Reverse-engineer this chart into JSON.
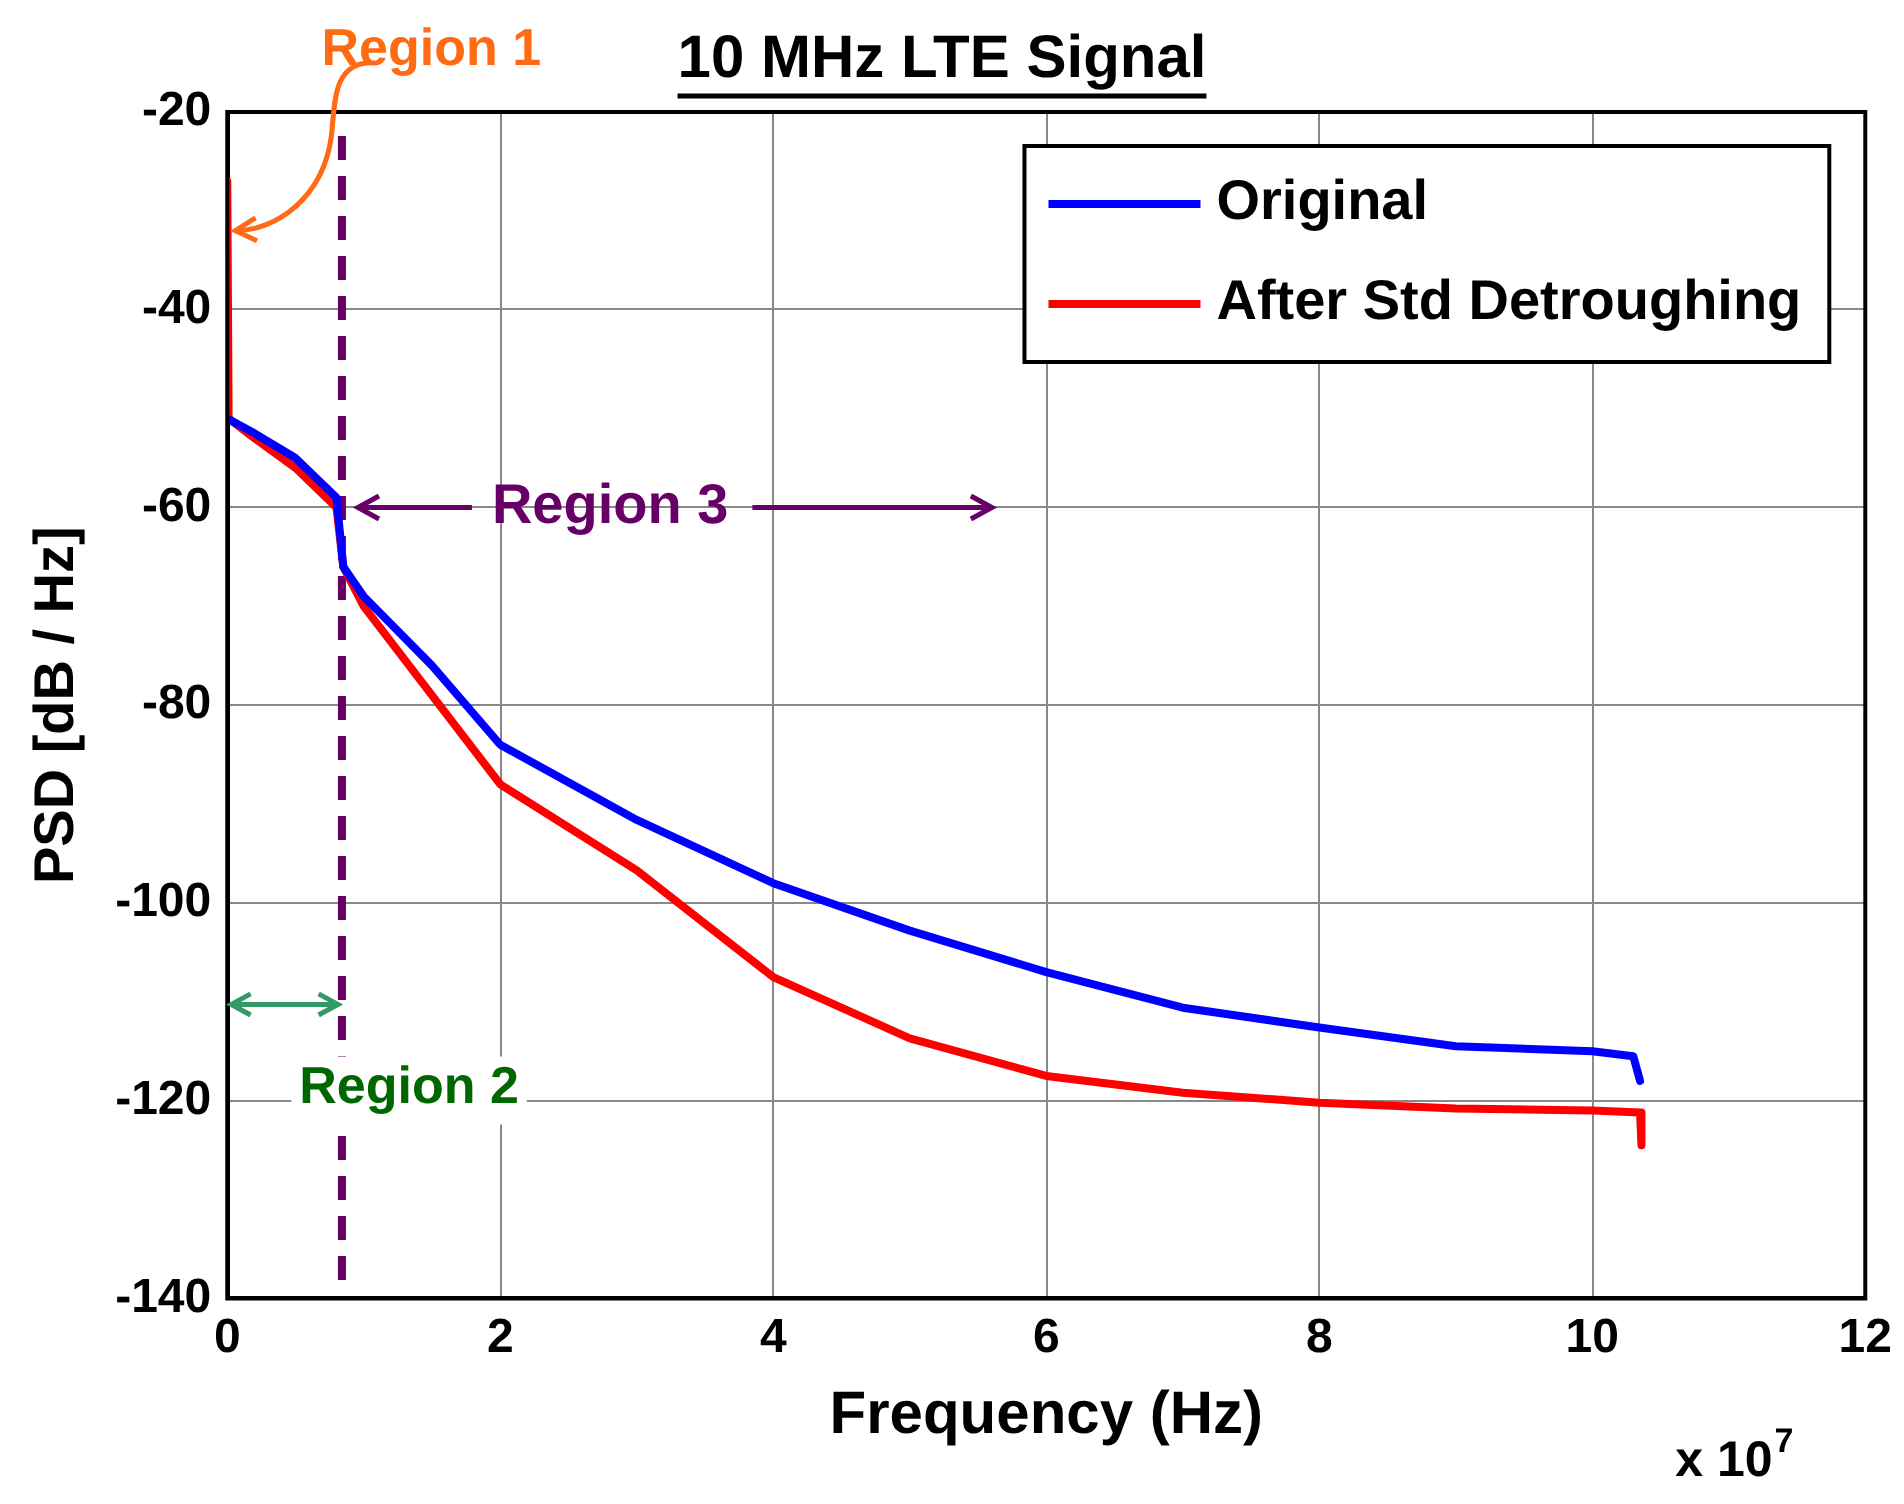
{
  "chart_data": {
    "type": "line",
    "title": "10 MHz LTE Signal",
    "xlabel": "Frequency (Hz)",
    "ylabel": "PSD [dB / Hz]",
    "xlim": [
      0,
      12
    ],
    "xticks": [
      0,
      2,
      4,
      6,
      8,
      10,
      12
    ],
    "ylim": [
      -140,
      -20
    ],
    "yticks": [
      -140,
      -120,
      -100,
      -80,
      -60,
      -40,
      -20
    ],
    "grid": true,
    "legend": "top right",
    "line_style": "solid",
    "marker": "none",
    "series": [
      {
        "name": "Original",
        "color": "#0000ff",
        "x": [
          0,
          0.2,
          0.5,
          0.8,
          0.85,
          1,
          1.5,
          2,
          3,
          4,
          5,
          6,
          7,
          8,
          9,
          10,
          10.3,
          10.35
        ],
        "values": [
          -51,
          -52.5,
          -55,
          -59,
          -66,
          -69,
          -76,
          -84,
          -91.6,
          -98,
          -102.8,
          -107,
          -110.6,
          -112.6,
          -114.5,
          -115,
          -115.5,
          -118
        ]
      },
      {
        "name": "After Std Detroughing",
        "color": "#ff0000",
        "x": [
          0,
          0.01,
          0.2,
          0.5,
          0.8,
          0.85,
          1,
          1.5,
          2,
          3,
          4,
          5,
          6,
          7,
          8,
          9,
          10,
          10.35,
          10.36
        ],
        "values": [
          -27,
          -51,
          -53,
          -56,
          -60,
          -66,
          -70,
          -79,
          -88,
          -96.7,
          -107.5,
          -113.7,
          -117.5,
          -119.2,
          -120.2,
          -120.8,
          -121,
          -121.2,
          -124.5
        ]
      }
    ],
    "ref_lines": [
      {
        "axis": "x",
        "value": 0.84,
        "color": "#660066",
        "line_style": "dashed"
      }
    ],
    "annotations": [
      {
        "text": "Region 1",
        "x": 0,
        "y": -32
      },
      {
        "text": "Region 3",
        "x": 0.84,
        "y": -60
      },
      "Region 2",
      "x 10$^{7}$"
    ]
  }
}
